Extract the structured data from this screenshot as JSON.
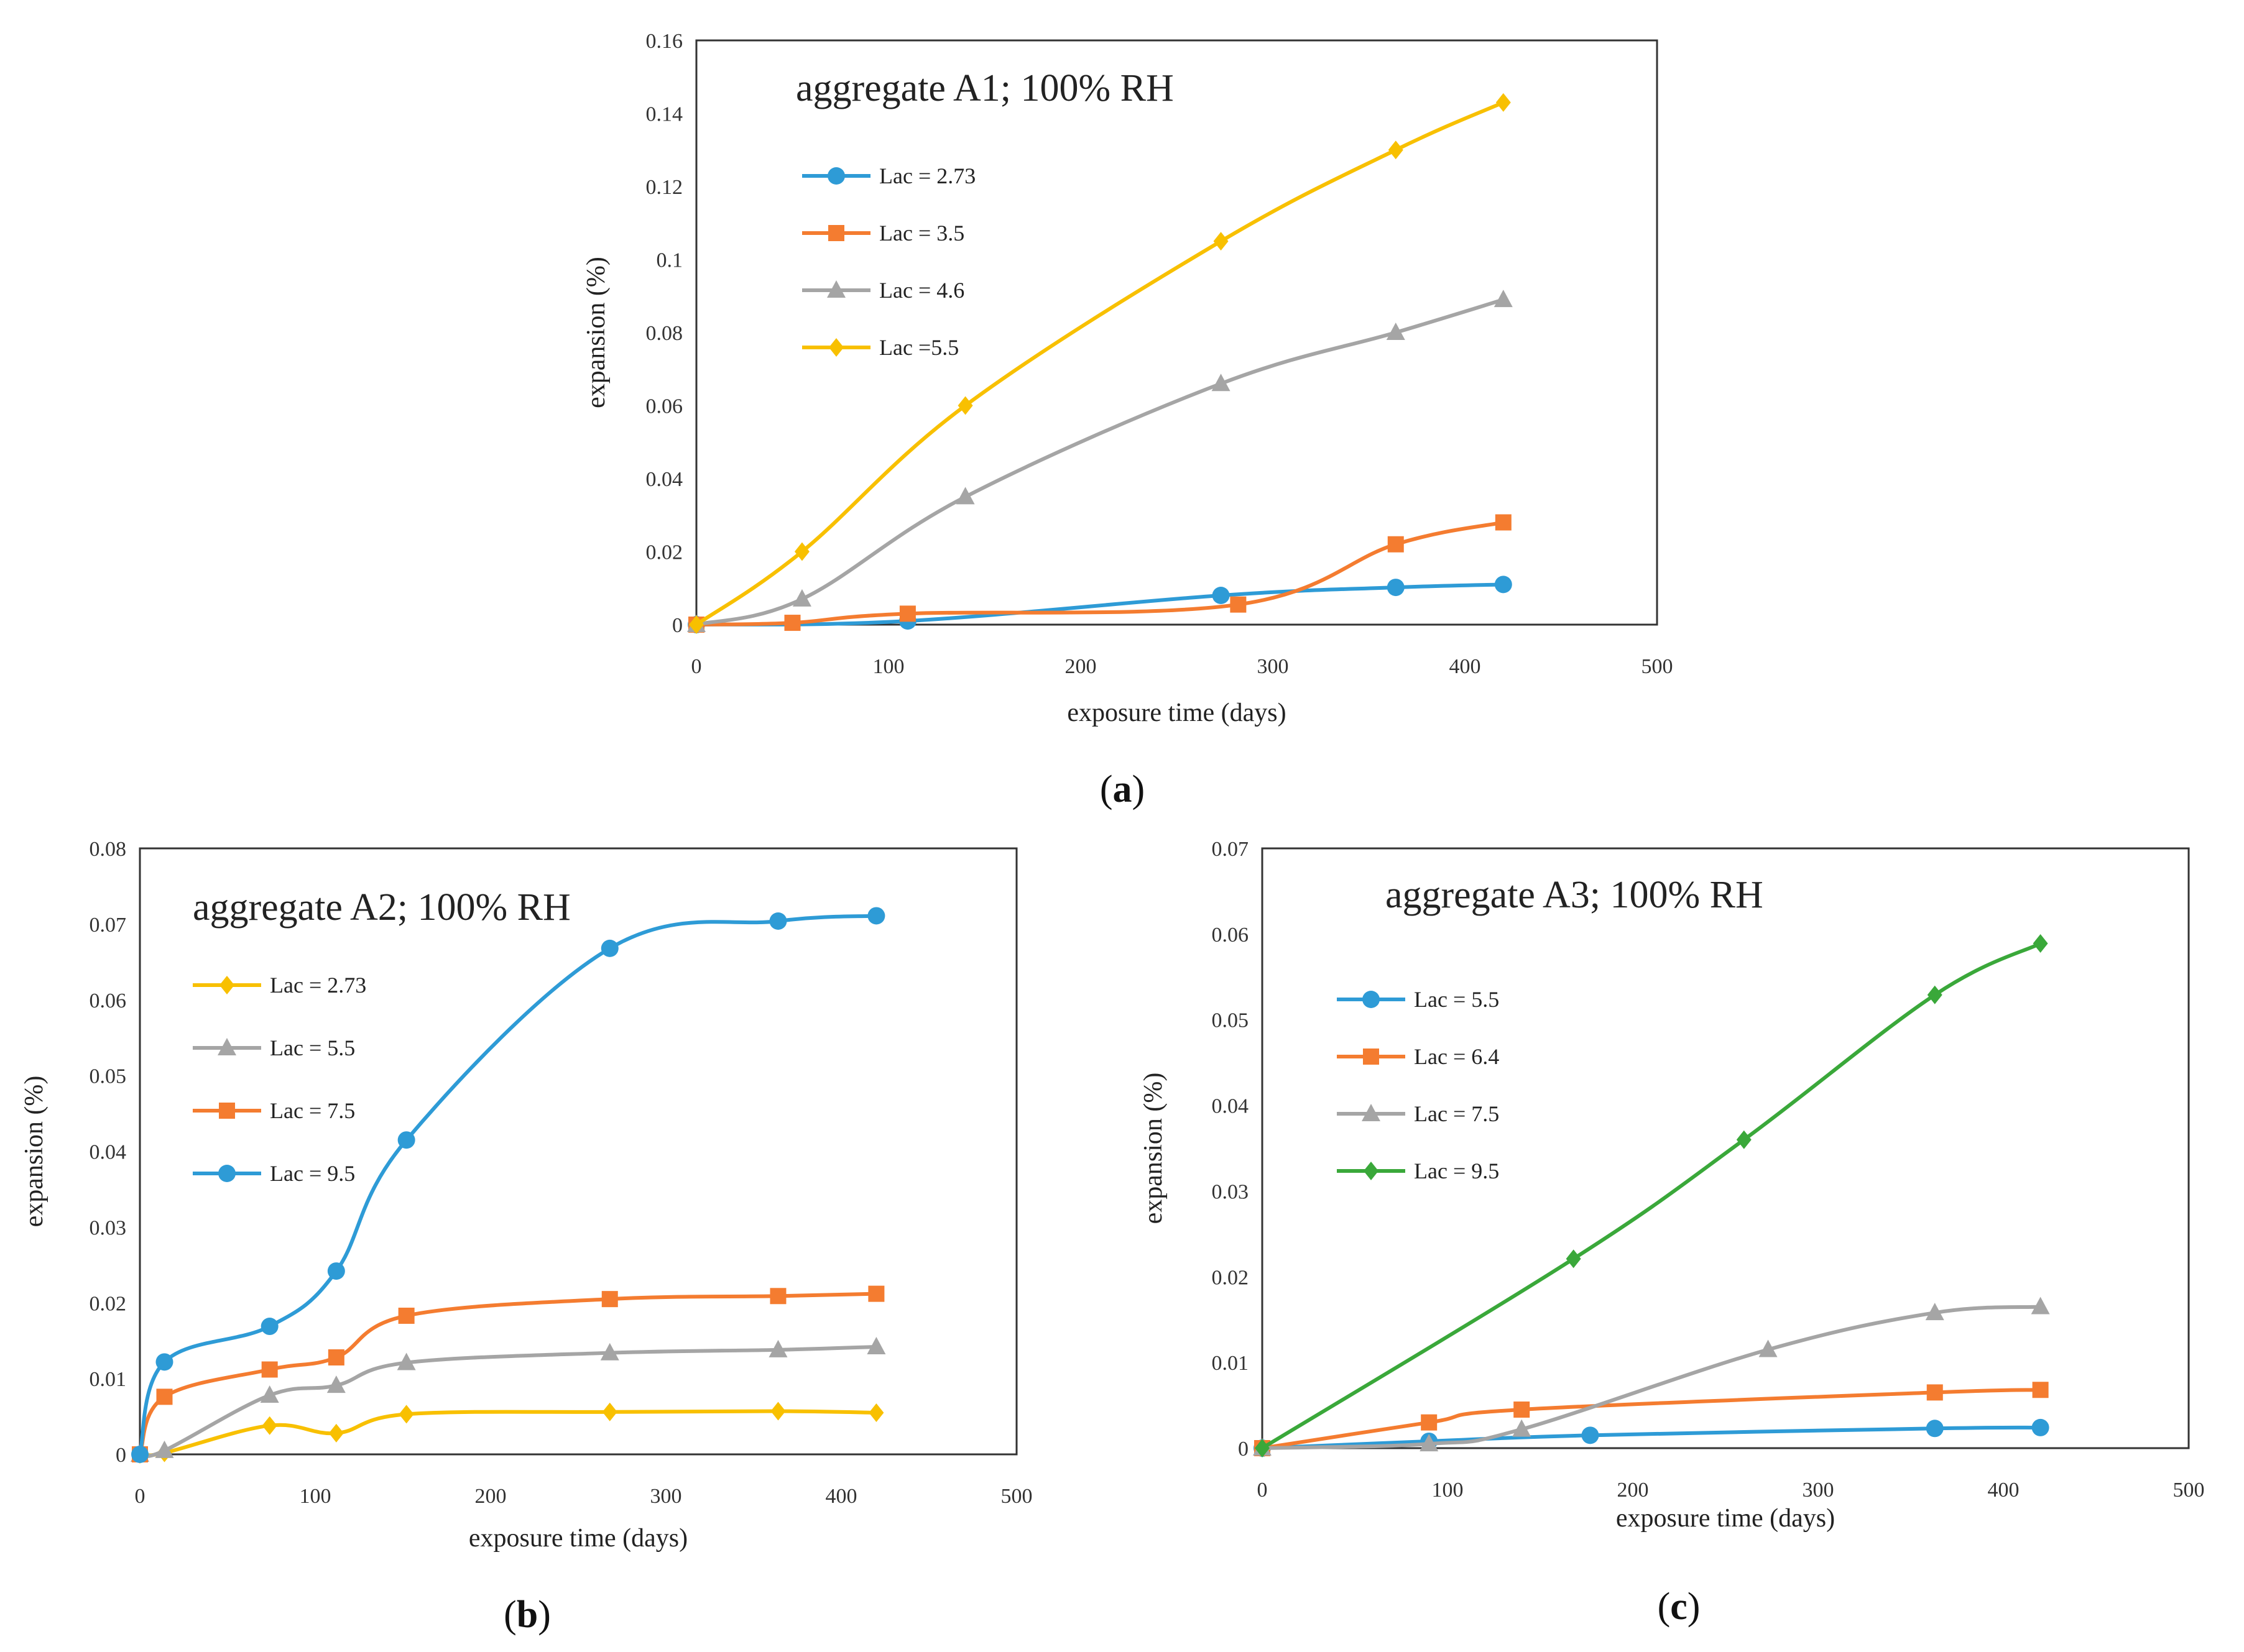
{
  "chart_data": [
    {
      "type": "line",
      "panel_label": "a",
      "title": "aggregate A1; 100% RH",
      "xlabel": "exposure time (days)",
      "ylabel": "expansion (%)",
      "xlim": [
        0,
        500
      ],
      "ylim": [
        0,
        0.16
      ],
      "xticks": [
        0,
        100,
        200,
        300,
        400,
        500
      ],
      "yticks": [
        0,
        0.02,
        0.04,
        0.06,
        0.08,
        0.1,
        0.12,
        0.14,
        0.16
      ],
      "xtick_labels": [
        "0",
        "100",
        "200",
        "300",
        "400",
        "500"
      ],
      "ytick_labels": [
        "0",
        "0.02",
        "0.04",
        "0.06",
        "0.08",
        "0.1",
        "0.12",
        "0.14",
        "0.16"
      ],
      "legend_position": "top-left",
      "series": [
        {
          "name": "Lac = 2.73",
          "color": "#2e9bd6",
          "marker": "circle",
          "x": [
            0,
            110,
            273,
            364,
            420
          ],
          "y": [
            0,
            0.001,
            0.008,
            0.0102,
            0.011
          ]
        },
        {
          "name": "Lac = 3.5",
          "color": "#f47c30",
          "marker": "square",
          "x": [
            0,
            50,
            110,
            282,
            364,
            420
          ],
          "y": [
            0,
            0.0005,
            0.003,
            0.0055,
            0.022,
            0.028
          ]
        },
        {
          "name": "Lac = 4.6",
          "color": "#a5a5a5",
          "marker": "triangle",
          "x": [
            0,
            55,
            140,
            273,
            364,
            420
          ],
          "y": [
            0,
            0.007,
            0.035,
            0.066,
            0.08,
            0.089
          ]
        },
        {
          "name": "Lac =5.5",
          "color": "#f8c000",
          "marker": "diamond",
          "x": [
            0,
            55,
            140,
            273,
            364,
            420
          ],
          "y": [
            0,
            0.02,
            0.06,
            0.105,
            0.13,
            0.143
          ]
        }
      ]
    },
    {
      "type": "line",
      "panel_label": "b",
      "title": "aggregate A2; 100% RH",
      "xlabel": "exposure time (days)",
      "ylabel": "expansion (%)",
      "xlim": [
        0,
        500
      ],
      "ylim": [
        0,
        0.08
      ],
      "xticks": [
        0,
        100,
        200,
        300,
        400,
        500
      ],
      "yticks": [
        0,
        0.01,
        0.02,
        0.03,
        0.04,
        0.05,
        0.06,
        0.07,
        0.08
      ],
      "xtick_labels": [
        "0",
        "100",
        "200",
        "300",
        "400",
        "500"
      ],
      "ytick_labels": [
        "0",
        "0.01",
        "0.02",
        "0.03",
        "0.04",
        "0.05",
        "0.06",
        "0.07",
        "0.08"
      ],
      "legend_position": "top-left",
      "series": [
        {
          "name": "Lac = 2.73",
          "color": "#f8c000",
          "marker": "diamond",
          "x": [
            0,
            14,
            74,
            112,
            152,
            268,
            364,
            420
          ],
          "y": [
            0,
            0.0002,
            0.0038,
            0.0028,
            0.0053,
            0.0056,
            0.0057,
            0.0055
          ]
        },
        {
          "name": "Lac = 5.5",
          "color": "#a5a5a5",
          "marker": "triangle",
          "x": [
            0,
            14,
            74,
            112,
            152,
            268,
            364,
            420
          ],
          "y": [
            0,
            0.0005,
            0.0078,
            0.0091,
            0.0121,
            0.0134,
            0.0138,
            0.0142
          ]
        },
        {
          "name": "Lac = 7.5",
          "color": "#f47c30",
          "marker": "square",
          "x": [
            0,
            14,
            74,
            112,
            152,
            268,
            364,
            420
          ],
          "y": [
            0,
            0.0076,
            0.0112,
            0.0128,
            0.0183,
            0.0205,
            0.0209,
            0.0212
          ]
        },
        {
          "name": "Lac = 9.5",
          "color": "#2e9bd6",
          "marker": "circle",
          "x": [
            0,
            14,
            74,
            112,
            152,
            268,
            364,
            420
          ],
          "y": [
            0,
            0.0122,
            0.0169,
            0.0242,
            0.0415,
            0.0668,
            0.0704,
            0.0711
          ]
        }
      ]
    },
    {
      "type": "line",
      "panel_label": "c",
      "title": "aggregate A3; 100% RH",
      "xlabel": "exposure time (days)",
      "ylabel": "expansion (%)",
      "xlim": [
        0,
        500
      ],
      "ylim": [
        0,
        0.07
      ],
      "xticks": [
        0,
        100,
        200,
        300,
        400,
        500
      ],
      "yticks": [
        0,
        0.01,
        0.02,
        0.03,
        0.04,
        0.05,
        0.06,
        0.07
      ],
      "xtick_labels": [
        "0",
        "100",
        "200",
        "300",
        "400",
        "500"
      ],
      "ytick_labels": [
        "0",
        "0.01",
        "0.02",
        "0.03",
        "0.04",
        "0.05",
        "0.06",
        "0.07"
      ],
      "legend_position": "top-left",
      "series": [
        {
          "name": "Lac = 5.5",
          "color": "#2e9bd6",
          "marker": "circle",
          "x": [
            0,
            90,
            177,
            363,
            420
          ],
          "y": [
            0,
            0.0008,
            0.0015,
            0.0023,
            0.0024
          ]
        },
        {
          "name": "Lac = 6.4",
          "color": "#f47c30",
          "marker": "square",
          "x": [
            0,
            90,
            140,
            363,
            420
          ],
          "y": [
            0,
            0.003,
            0.0045,
            0.0065,
            0.0068
          ]
        },
        {
          "name": "Lac = 7.5",
          "color": "#a5a5a5",
          "marker": "triangle",
          "x": [
            0,
            90,
            140,
            273,
            363,
            420
          ],
          "y": [
            0,
            0.0005,
            0.0022,
            0.0115,
            0.0158,
            0.0165
          ]
        },
        {
          "name": "Lac = 9.5",
          "color": "#3aa83a",
          "marker": "diamond",
          "x": [
            0,
            168,
            260,
            363,
            420
          ],
          "y": [
            0,
            0.0221,
            0.036,
            0.0529,
            0.0589
          ]
        }
      ]
    }
  ]
}
